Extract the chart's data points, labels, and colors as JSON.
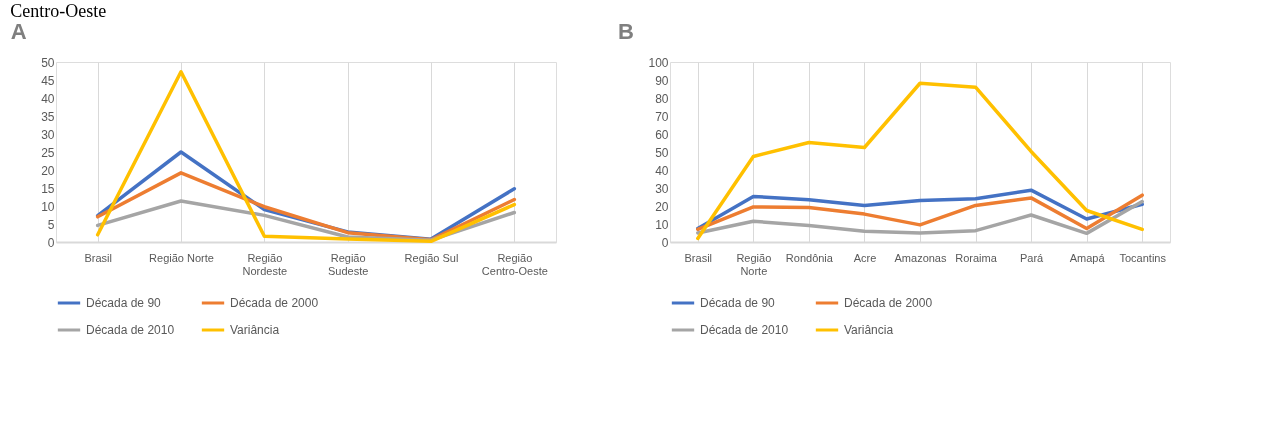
{
  "chart_data": [
    {
      "type": "line",
      "title": "A",
      "annotations": [
        "Centro-Oeste"
      ],
      "categories": [
        "Brasil",
        "Região Norte",
        "Região Nordeste",
        "Região Sudeste",
        "Região Sul",
        "Região Centro-Oeste"
      ],
      "series": [
        {
          "name": "Década de 90",
          "color": "#4472c4",
          "values": [
            7.3,
            25,
            9,
            2.8,
            0.8,
            14.8
          ]
        },
        {
          "name": "Década de 2000",
          "color": "#ed7d31",
          "values": [
            7,
            19.2,
            9.8,
            2.6,
            0.6,
            11.8
          ]
        },
        {
          "name": "Década de 2010",
          "color": "#a5a5a5",
          "values": [
            4.6,
            11.4,
            7.4,
            1.4,
            0.5,
            8.2
          ]
        },
        {
          "name": "Variância",
          "color": "#ffc000",
          "values": [
            2,
            47.3,
            1.6,
            0.8,
            0.2,
            10.4
          ]
        }
      ],
      "ylim": [
        0,
        50
      ],
      "yticks": [
        0,
        5,
        10,
        15,
        20,
        25,
        30,
        35,
        40,
        45,
        50
      ],
      "grid": "x",
      "legend": "bottom",
      "marker": "none",
      "line_style": "solid"
    },
    {
      "type": "line",
      "title": "B",
      "categories": [
        "Brasil",
        "Região Norte",
        "Rondônia",
        "Acre",
        "Amazonas",
        "Roraima",
        "Pará",
        "Amapá",
        "Tocantins"
      ],
      "series": [
        {
          "name": "Década de 90",
          "color": "#4472c4",
          "values": [
            7.5,
            25.3,
            23.5,
            20.3,
            23,
            24,
            28.8,
            12.8,
            21
          ]
        },
        {
          "name": "Década de 2000",
          "color": "#ed7d31",
          "values": [
            7,
            19.5,
            19.2,
            15.5,
            9.5,
            20.3,
            24.5,
            7.5,
            26
          ]
        },
        {
          "name": "Década de 2010",
          "color": "#a5a5a5",
          "values": [
            5,
            11.5,
            9.2,
            6,
            5,
            6.3,
            15,
            4.8,
            22.5
          ]
        },
        {
          "name": "Variância",
          "color": "#ffc000",
          "values": [
            2,
            47.5,
            55.3,
            52.5,
            88.2,
            86,
            50.3,
            17.5,
            7
          ]
        }
      ],
      "ylim": [
        0,
        100
      ],
      "yticks": [
        0,
        10,
        20,
        30,
        40,
        50,
        60,
        70,
        80,
        90,
        100
      ],
      "grid": "x",
      "legend": "bottom",
      "marker": "none",
      "line_style": "solid"
    }
  ]
}
